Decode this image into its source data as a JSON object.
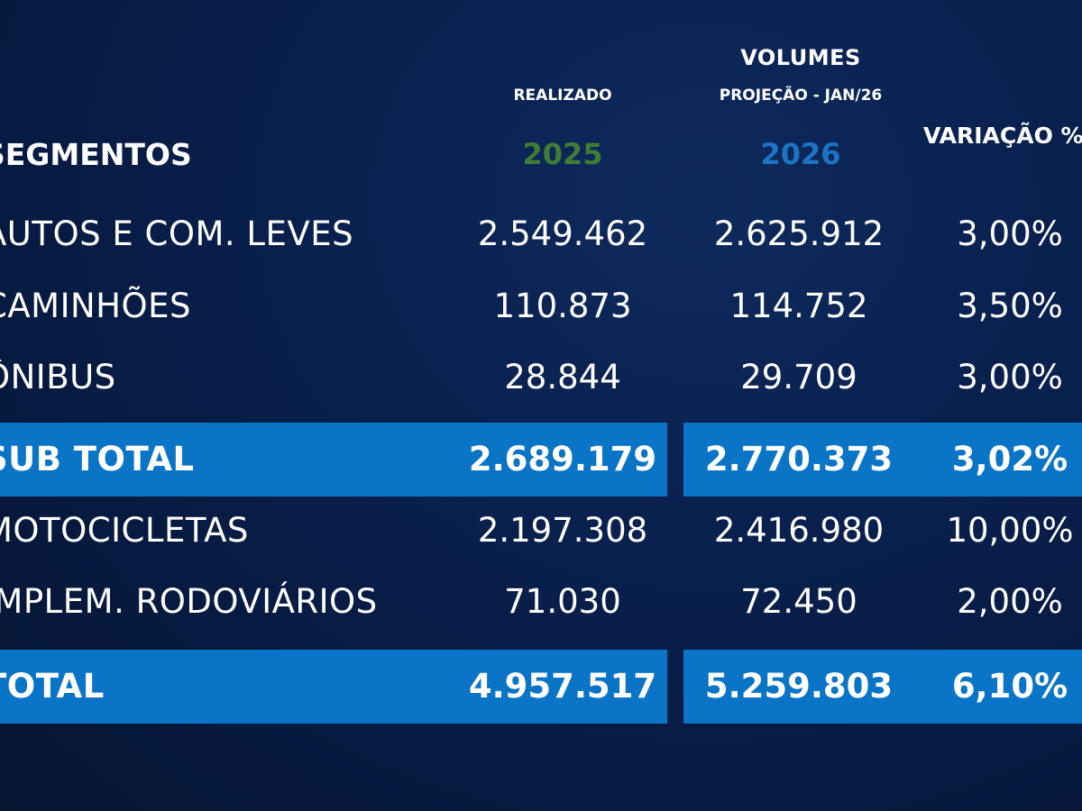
{
  "header": {
    "volumes": "VOLUMES",
    "realizado": "REALIZADO",
    "projecao": "PROJEÇÃO - JAN/26",
    "year_2025": "2025",
    "year_2026": "2026",
    "segmentos": "SEGMENTOS",
    "variacao": "VARIAÇÃO %"
  },
  "colors": {
    "background": "#071a40",
    "highlight_band": "#0a74c6",
    "year_2025": "#3f7d34",
    "year_2026": "#1c74c4",
    "text": "#ffffff"
  },
  "rows": [
    {
      "segment": "AUTOS E COM. LEVES",
      "v2025": "2.549.462",
      "v2026": "2.625.912",
      "variation": "3,00%",
      "highlighted": false
    },
    {
      "segment": "CAMINHÕES",
      "v2025": "110.873",
      "v2026": "114.752",
      "variation": "3,50%",
      "highlighted": false
    },
    {
      "segment": "ÔNIBUS",
      "v2025": "28.844",
      "v2026": "29.709",
      "variation": "3,00%",
      "highlighted": false
    },
    {
      "segment": "SUB TOTAL",
      "v2025": "2.689.179",
      "v2026": "2.770.373",
      "variation": "3,02%",
      "highlighted": true
    },
    {
      "segment": "MOTOCICLETAS",
      "v2025": "2.197.308",
      "v2026": "2.416.980",
      "variation": "10,00%",
      "highlighted": false
    },
    {
      "segment": "IMPLEM. RODOVIÁRIOS",
      "v2025": "71.030",
      "v2026": "72.450",
      "variation": "2,00%",
      "highlighted": false
    },
    {
      "segment": "TOTAL",
      "v2025": "4.957.517",
      "v2026": "5.259.803",
      "variation": "6,10%",
      "highlighted": true
    }
  ]
}
